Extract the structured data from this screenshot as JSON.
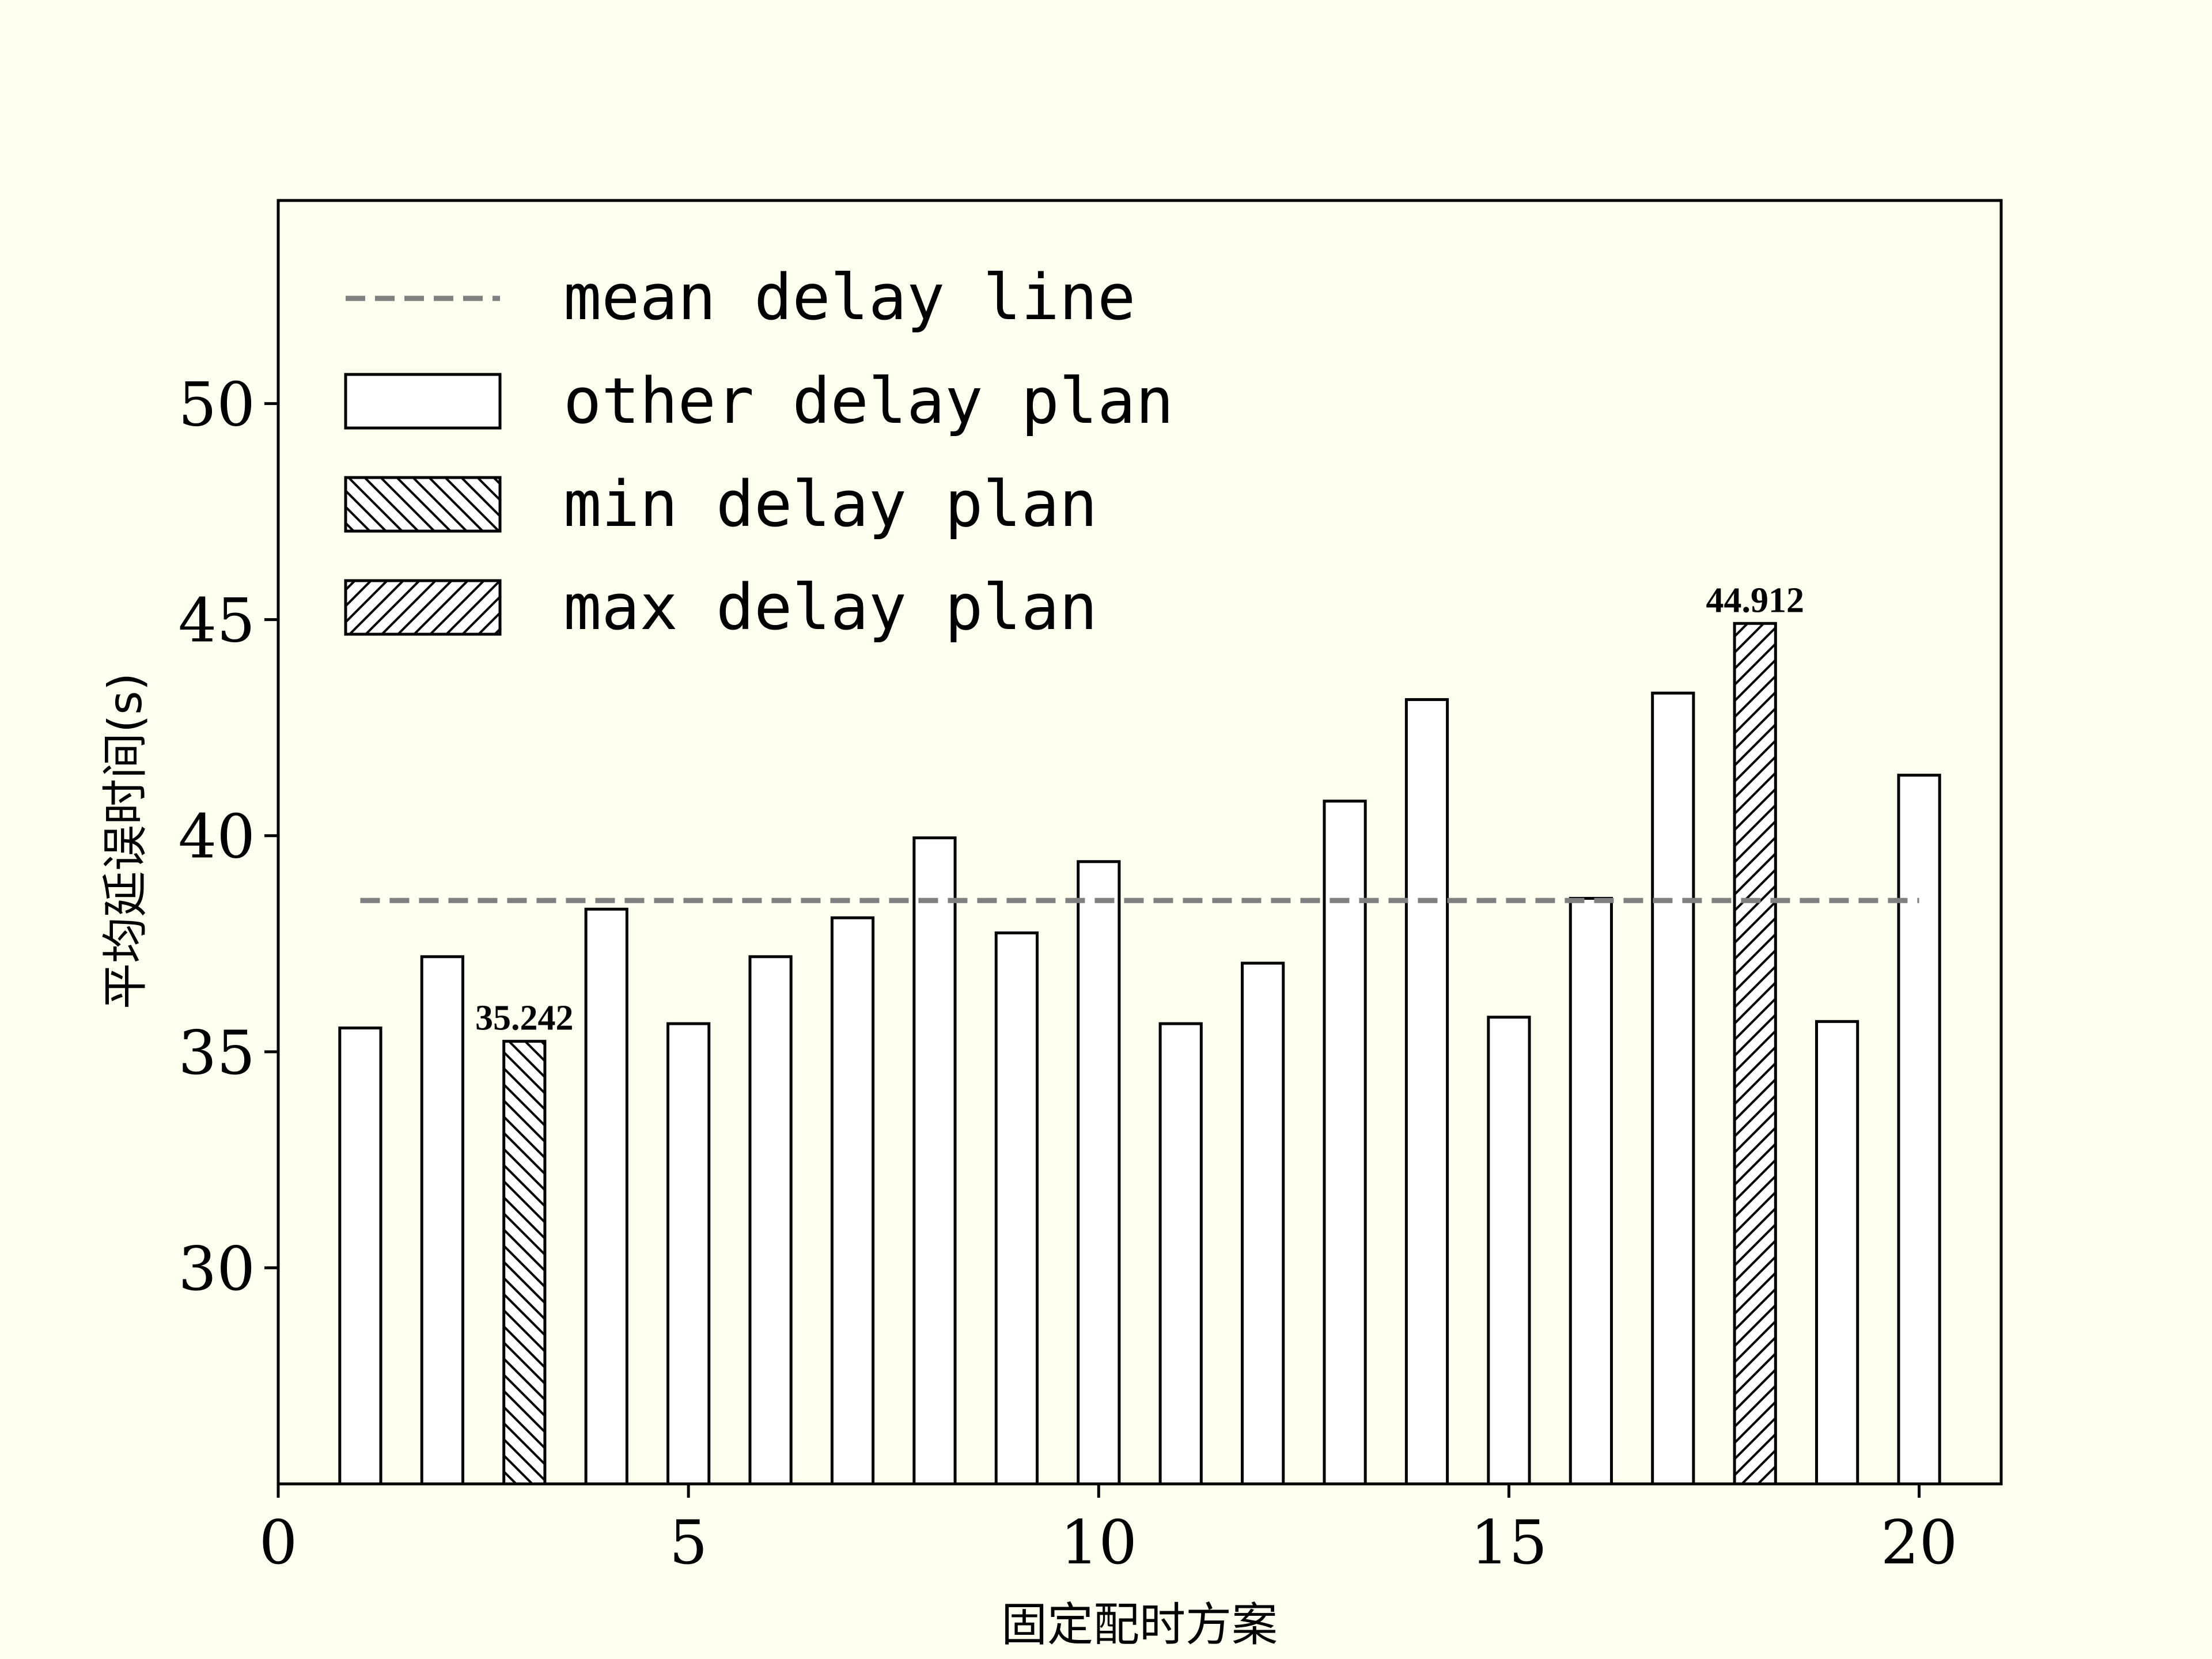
{
  "chart_data": {
    "type": "bar",
    "xlabel": "固定配时方案",
    "ylabel": "平均延误时间(s)",
    "xlim": [
      0,
      21
    ],
    "ylim": [
      25,
      54.7
    ],
    "xticks": [
      0,
      5,
      10,
      15,
      20
    ],
    "yticks": [
      30,
      35,
      40,
      45,
      50
    ],
    "grid": false,
    "legend_position": "top-left",
    "x": [
      1,
      2,
      3,
      4,
      5,
      6,
      7,
      8,
      9,
      10,
      11,
      12,
      13,
      14,
      15,
      16,
      17,
      18,
      19,
      20
    ],
    "values": [
      35.55,
      37.2,
      35.242,
      38.3,
      35.65,
      37.2,
      38.1,
      39.95,
      37.75,
      39.4,
      35.65,
      37.05,
      40.8,
      43.15,
      35.8,
      38.55,
      43.3,
      44.912,
      35.7,
      41.4
    ],
    "mean_delay": 38.5,
    "min_index": 3,
    "max_index": 18,
    "annotations": [
      {
        "x": 3,
        "text": "35.242"
      },
      {
        "x": 18,
        "text": "44.912"
      }
    ],
    "legend": [
      {
        "key": "mean",
        "label": "mean delay line"
      },
      {
        "key": "other",
        "label": "other delay plan"
      },
      {
        "key": "min",
        "label": "min delay plan"
      },
      {
        "key": "max",
        "label": "max delay plan"
      }
    ],
    "colors": {
      "background": "#fffff0",
      "bar_fill": "#ffffff",
      "bar_edge": "#000000",
      "mean_line": "#808080"
    }
  }
}
